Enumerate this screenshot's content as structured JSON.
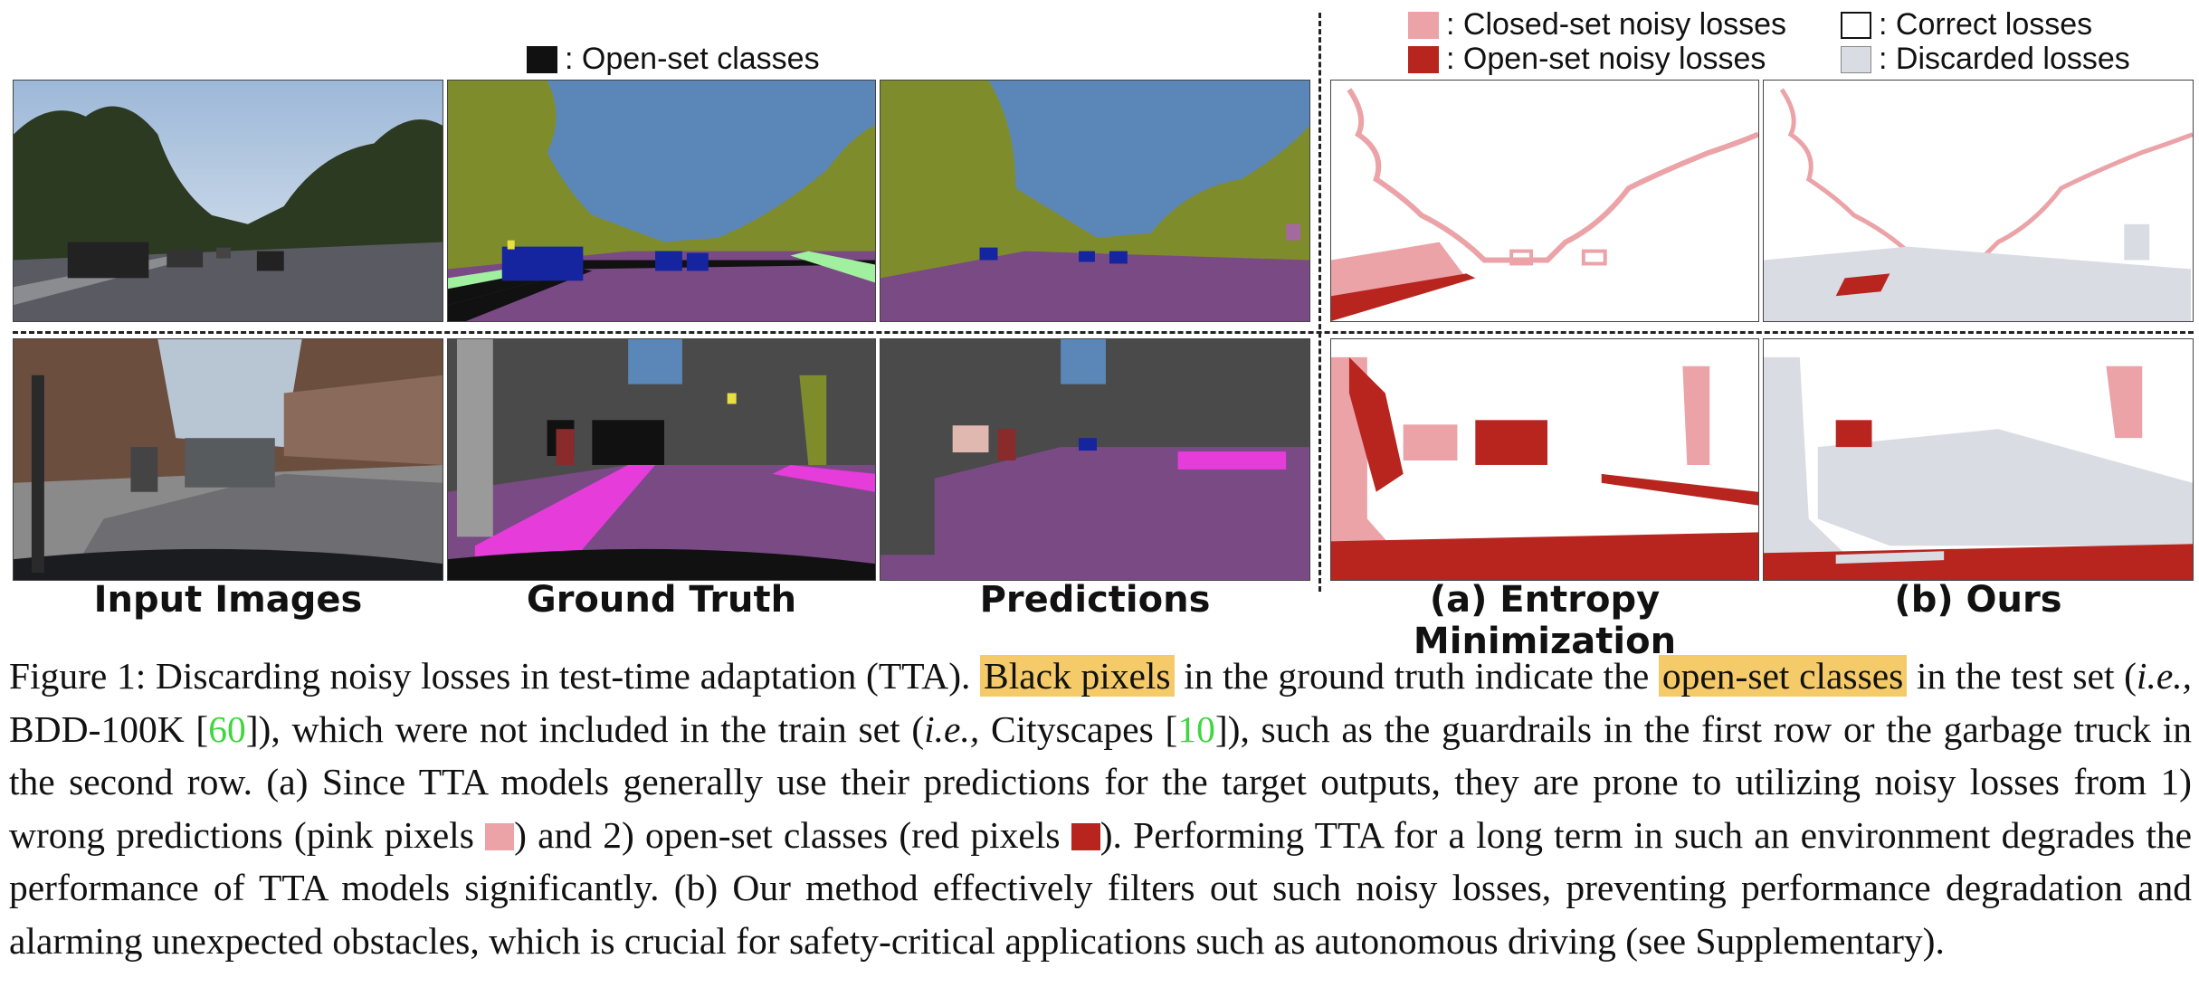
{
  "legend": {
    "open_set_classes": ": Open-set classes",
    "closed_set_noisy": ": Closed-set noisy losses",
    "open_set_noisy": ": Open-set noisy losses",
    "correct": ": Correct losses",
    "discarded": ": Discarded losses"
  },
  "colors": {
    "open_set_black": "#111111",
    "closed_set_pink": "#eba3a8",
    "open_set_red": "#b8251f",
    "correct_white": "#ffffff",
    "discarded_gray": "#d9dce3",
    "sky_blue": "#5b87b8",
    "vegetation": "#7f8c2c",
    "road": "#7a4a85",
    "sidewalk_magenta": "#e63cda",
    "building": "#4a4a4a",
    "car": "#1525a0",
    "highlight": "#f5cb6a",
    "cite_green": "#3fd63f"
  },
  "columns": {
    "input": "Input Images",
    "gt": "Ground Truth",
    "pred": "Predictions",
    "entropy": "(a) Entropy Minimization",
    "ours": "(b) Ours"
  },
  "caption": {
    "p1": "Figure 1: Discarding noisy losses in test-time adaptation (TTA). ",
    "hl1": "Black pixels",
    "p2": " in the ground truth indicate the ",
    "hl2": "open-set classes",
    "p3": " in the test set (",
    "ie1": "i.e.,",
    "p4": " BDD-100K [",
    "cite1": "60",
    "p5": "]), which were not included in the train set (",
    "ie2": "i.e.,",
    "p6": " Cityscapes [",
    "cite2": "10",
    "p7": "]), such as the guardrails in the first row or the garbage truck in the second row. (a) Since TTA models generally use their predictions for the target outputs, they are prone to utilizing noisy losses from 1) wrong predictions (pink pixels ",
    "p8": ") and 2) open-set classes (red pixels ",
    "p9": "). Performing TTA for a long term in such an environment degrades the performance of TTA models significantly. (b) Our method effectively filters out such noisy losses, preventing performance degradation and alarming unexpected obstacles, which is crucial for safety-critical applications such as autonomous driving (see Supplementary)."
  }
}
